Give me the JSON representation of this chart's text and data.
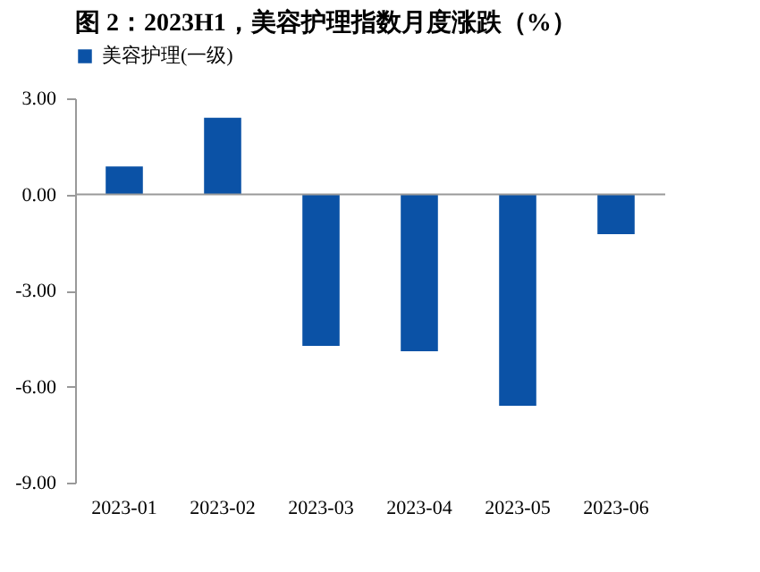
{
  "chart_data": {
    "type": "bar",
    "title": "图 2：2023H1，美容护理指数月度涨跌（%）",
    "categories": [
      "2023-01",
      "2023-02",
      "2023-03",
      "2023-04",
      "2023-05",
      "2023-06"
    ],
    "series": [
      {
        "name": "美容护理(一级)",
        "color": "#0b52a6",
        "values": [
          0.87,
          2.39,
          -4.73,
          -4.9,
          -6.6,
          -1.24
        ]
      }
    ],
    "ylim": [
      -9,
      3
    ],
    "yticks": [
      {
        "value": -9,
        "label": "-9.00"
      },
      {
        "value": -6,
        "label": "-6.00"
      },
      {
        "value": -3,
        "label": "-3.00"
      },
      {
        "value": 0,
        "label": "0.00"
      },
      {
        "value": 3,
        "label": "3.00"
      }
    ],
    "ref_lines": [
      {
        "axis": "y",
        "value": 0,
        "color": "#999999"
      }
    ],
    "legend": "top"
  }
}
